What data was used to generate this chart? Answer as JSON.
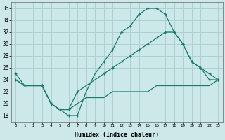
{
  "xlabel": "Humidex (Indice chaleur)",
  "xlim": [
    -0.5,
    23.5
  ],
  "ylim": [
    17,
    37
  ],
  "bg_color": "#cde8e8",
  "grid_color": "#add0d0",
  "line_color": "#1a7a6e",
  "xticks": [
    0,
    1,
    2,
    3,
    4,
    5,
    6,
    7,
    8,
    9,
    10,
    11,
    12,
    13,
    14,
    15,
    16,
    17,
    18,
    19,
    20,
    21,
    22,
    23
  ],
  "yticks": [
    18,
    20,
    22,
    24,
    26,
    28,
    30,
    32,
    34,
    36
  ],
  "curve1_x": [
    0,
    1,
    3,
    4,
    5,
    6,
    7,
    10,
    11,
    12,
    13,
    14,
    15,
    16,
    17,
    18,
    19,
    20,
    21,
    22,
    23
  ],
  "curve1_y": [
    25,
    23,
    23,
    20,
    19,
    18,
    18,
    27,
    29,
    32,
    33,
    35,
    36,
    36,
    35,
    32,
    30,
    27,
    26,
    25,
    24
  ],
  "curve2_x": [
    0,
    1,
    3,
    4,
    5,
    6,
    7,
    10,
    11,
    12,
    13,
    14,
    15,
    16,
    17,
    18,
    19,
    20,
    21,
    22,
    23
  ],
  "curve2_y": [
    24,
    23,
    23,
    20,
    19,
    19,
    22,
    25,
    26,
    27,
    28,
    29,
    30,
    31,
    32,
    32,
    30,
    27,
    26,
    24,
    24
  ],
  "curve1_smooth_x": [
    0,
    1,
    2,
    3,
    4,
    5,
    6,
    7,
    8,
    9,
    10,
    11,
    12,
    13,
    14,
    15,
    16,
    17,
    18,
    19,
    20,
    21,
    22,
    23
  ],
  "curve1_smooth_y": [
    25,
    23,
    23,
    23,
    20,
    19,
    18,
    18,
    22,
    25,
    27,
    29,
    32,
    33,
    35,
    36,
    36,
    35,
    32,
    30,
    27,
    26,
    25,
    24
  ],
  "curve2_smooth_x": [
    0,
    1,
    2,
    3,
    4,
    5,
    6,
    7,
    8,
    9,
    10,
    11,
    12,
    13,
    14,
    15,
    16,
    17,
    18,
    19,
    20,
    21,
    22,
    23
  ],
  "curve2_smooth_y": [
    24,
    23,
    23,
    23,
    20,
    19,
    19,
    22,
    23,
    24,
    25,
    26,
    27,
    28,
    29,
    30,
    31,
    32,
    32,
    30,
    27,
    26,
    24,
    24
  ],
  "curve3_smooth_x": [
    0,
    1,
    2,
    3,
    4,
    5,
    6,
    7,
    8,
    9,
    10,
    11,
    12,
    13,
    14,
    15,
    16,
    17,
    18,
    19,
    20,
    21,
    22,
    23
  ],
  "curve3_smooth_y": [
    24,
    23,
    23,
    23,
    20,
    19,
    19,
    20,
    21,
    21,
    21,
    22,
    22,
    22,
    22,
    22,
    23,
    23,
    23,
    23,
    23,
    23,
    23,
    24
  ]
}
